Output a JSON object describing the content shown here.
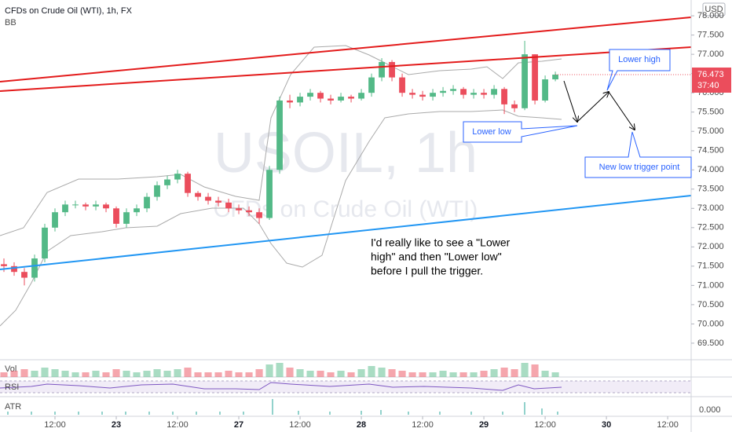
{
  "chart_data": {
    "type": "candlestick",
    "title": "CFDs on Crude Oil (WTI), 1h, FX",
    "indicator": "BB",
    "watermark": "USOIL, 1h",
    "watermark_subtitle": "CFDs on Crude Oil (WTI)",
    "currency": "USD",
    "countdown": "37:40",
    "up_color": "#53b987",
    "down_color": "#eb4d5c",
    "x": [
      2,
      4,
      6,
      8,
      10,
      12,
      14,
      16,
      18,
      20,
      22,
      24,
      26,
      28,
      30,
      32,
      34,
      36,
      38,
      40,
      42,
      44,
      46,
      48,
      50,
      52,
      54,
      56,
      58,
      60,
      62,
      64,
      66,
      68,
      70,
      72,
      74,
      76,
      78,
      80,
      82,
      84,
      86,
      88,
      90,
      92,
      94,
      96,
      98,
      100,
      102,
      104,
      106,
      108,
      110
    ],
    "open": [
      71.55,
      71.5,
      71.35,
      71.2,
      71.7,
      72.5,
      72.9,
      73.1,
      73.1,
      73.05,
      73.1,
      73.0,
      72.6,
      72.9,
      73.0,
      73.3,
      73.6,
      73.75,
      73.9,
      73.4,
      73.3,
      73.2,
      73.15,
      73.0,
      72.95,
      72.9,
      72.75,
      74.0,
      75.8,
      75.75,
      75.9,
      76.0,
      75.85,
      75.8,
      75.9,
      75.85,
      76.0,
      76.4,
      76.8,
      76.4,
      76.0,
      75.95,
      75.9,
      76.0,
      76.05,
      76.1,
      75.95,
      76.0,
      75.95,
      76.1,
      75.7,
      75.6,
      77.0,
      75.8,
      76.35
    ],
    "high": [
      71.7,
      71.6,
      71.45,
      71.8,
      72.6,
      73.0,
      73.2,
      73.2,
      73.15,
      73.2,
      73.15,
      73.05,
      73.0,
      73.1,
      73.4,
      73.7,
      73.85,
      74.0,
      73.95,
      73.45,
      73.4,
      73.3,
      73.25,
      73.1,
      73.05,
      73.0,
      74.1,
      75.9,
      75.95,
      76.0,
      76.1,
      76.05,
      75.95,
      76.0,
      75.95,
      76.1,
      76.5,
      76.9,
      76.85,
      76.5,
      76.1,
      76.05,
      76.1,
      76.15,
      76.2,
      76.15,
      76.1,
      76.1,
      76.2,
      76.15,
      75.8,
      77.35,
      77.0,
      76.45,
      76.55
    ],
    "low": [
      71.35,
      71.25,
      71.0,
      71.1,
      71.6,
      72.4,
      72.8,
      73.0,
      72.95,
      72.95,
      72.9,
      72.5,
      72.5,
      72.8,
      72.9,
      73.2,
      73.5,
      73.65,
      73.3,
      73.2,
      73.1,
      73.05,
      72.9,
      72.85,
      72.8,
      72.6,
      72.7,
      73.9,
      75.6,
      75.65,
      75.8,
      75.75,
      75.7,
      75.75,
      75.75,
      75.8,
      75.9,
      76.3,
      76.3,
      75.9,
      75.85,
      75.8,
      75.8,
      75.9,
      75.95,
      75.85,
      75.85,
      75.85,
      75.85,
      75.45,
      75.5,
      75.55,
      75.7,
      75.75,
      76.3
    ],
    "close": [
      71.5,
      71.35,
      71.2,
      71.7,
      72.5,
      72.9,
      73.1,
      73.1,
      73.05,
      73.1,
      73.0,
      72.6,
      72.9,
      73.0,
      73.3,
      73.6,
      73.75,
      73.9,
      73.4,
      73.3,
      73.2,
      73.15,
      73.0,
      72.95,
      72.9,
      72.75,
      74.0,
      75.8,
      75.75,
      75.9,
      76.0,
      75.85,
      75.8,
      75.9,
      75.85,
      76.0,
      76.4,
      76.8,
      76.4,
      76.0,
      75.95,
      75.9,
      76.0,
      76.05,
      76.1,
      75.95,
      76.0,
      75.95,
      76.1,
      75.7,
      75.6,
      77.0,
      75.8,
      76.35,
      76.473
    ],
    "volume": [
      3,
      4,
      5,
      4,
      6,
      5,
      4,
      3,
      3,
      4,
      3,
      5,
      4,
      3,
      4,
      5,
      4,
      5,
      6,
      3,
      3,
      3,
      4,
      3,
      3,
      5,
      8,
      9,
      6,
      5,
      4,
      4,
      3,
      4,
      3,
      5,
      7,
      6,
      5,
      4,
      3,
      3,
      3,
      4,
      3,
      3,
      3,
      4,
      5,
      6,
      5,
      9,
      8,
      4,
      3
    ],
    "xlim": [
      1.23,
      136.6
    ],
    "ylim": [
      69.07,
      78.41
    ],
    "xticks": [
      {
        "value": 12,
        "label": "12:00"
      },
      {
        "value": 24,
        "label": "23"
      },
      {
        "value": 36,
        "label": "12:00"
      },
      {
        "value": 48,
        "label": "27"
      },
      {
        "value": 60,
        "label": "12:00"
      },
      {
        "value": 72,
        "label": "28"
      },
      {
        "value": 84,
        "label": "12:00"
      },
      {
        "value": 96,
        "label": "29"
      },
      {
        "value": 108,
        "label": "12:00"
      },
      {
        "value": 120,
        "label": "30"
      },
      {
        "value": 132,
        "label": "12:00"
      }
    ],
    "yticks": [
      {
        "value": 69.5,
        "label": "69.500"
      },
      {
        "value": 70,
        "label": "70.000"
      },
      {
        "value": 70.5,
        "label": "70.500"
      },
      {
        "value": 71,
        "label": "71.000"
      },
      {
        "value": 71.5,
        "label": "71.500"
      },
      {
        "value": 72,
        "label": "72.000"
      },
      {
        "value": 72.5,
        "label": "72.500"
      },
      {
        "value": 73,
        "label": "73.000"
      },
      {
        "value": 73.5,
        "label": "73.500"
      },
      {
        "value": 74,
        "label": "74.000"
      },
      {
        "value": 74.5,
        "label": "74.500"
      },
      {
        "value": 75,
        "label": "75.000"
      },
      {
        "value": 75.5,
        "label": "75.500"
      },
      {
        "value": 76,
        "label": "76.000"
      },
      {
        "value": 76.5,
        "label": "76.500"
      },
      {
        "value": 77,
        "label": "77.000"
      },
      {
        "value": 77.5,
        "label": "77.500"
      },
      {
        "value": 78,
        "label": "78.000"
      }
    ],
    "callouts": [
      "Lower high",
      "Lower low",
      "New low trigger point"
    ],
    "note": [
      "I'd really like to see a \"Lower",
      "high\" and then \"Lower low\"",
      "before I pull the trigger."
    ],
    "panels": [
      "Vol",
      "RSI",
      "ATR"
    ],
    "atr_tick": {
      "value": 0,
      "label": "0.000"
    }
  }
}
